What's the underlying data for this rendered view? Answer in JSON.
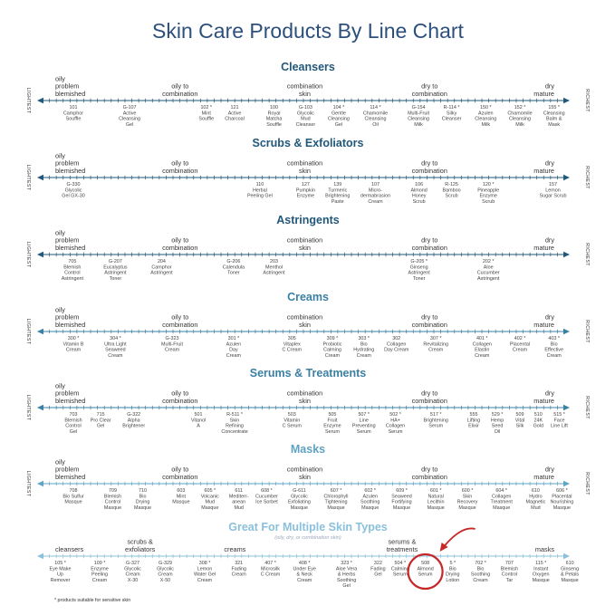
{
  "title": "Skin Care Products By Line Chart",
  "side_left": "LIGHTEST",
  "side_right": "RICHEST",
  "footnote": "* products suitable for sensitive skin",
  "sections": [
    {
      "title": "Cleansers",
      "color": "#22587a",
      "labels": [
        {
          "text": "oily\nproblem\nblemished",
          "pos": 0.0,
          "anchor": "start"
        },
        {
          "text": "oily to\ncombination",
          "pos": 0.25,
          "anchor": "middle"
        },
        {
          "text": "combination\nskin",
          "pos": 0.5,
          "anchor": "middle"
        },
        {
          "text": "dry to\ncombination",
          "pos": 0.75,
          "anchor": "middle"
        },
        {
          "text": "dry\nmature",
          "pos": 1.0,
          "anchor": "end"
        }
      ],
      "products": [
        {
          "text": "101\nCamphor\nSouffle",
          "pos": 0.05
        },
        {
          "text": "G-107\nActive\nCleansing\nGel",
          "pos": 0.157
        },
        {
          "text": "102 *\nMint\nSouffle",
          "pos": 0.303
        },
        {
          "text": "121\nActive\nCharcoal",
          "pos": 0.357
        },
        {
          "text": "100\nRoyal\nMatcha\nSouffle",
          "pos": 0.432
        },
        {
          "text": "G-103\nGlycolic\nMud\nCleanser",
          "pos": 0.492
        },
        {
          "text": "104 *\nGentle\nCleansing\nGel",
          "pos": 0.555
        },
        {
          "text": "114 *\nChamomile\nCleansing\nOil",
          "pos": 0.625
        },
        {
          "text": "G-154\nMulti-Fruit\nCleansing\nMilk",
          "pos": 0.707
        },
        {
          "text": "R-114 *\nSilky\nCleanser",
          "pos": 0.77
        },
        {
          "text": "150 *\nAzulen\nCleansing\nMilk",
          "pos": 0.835
        },
        {
          "text": "152 *\nChamomile\nCleansing\nMilk",
          "pos": 0.9
        },
        {
          "text": "155 *\nCleansing\nBalm &\nMask",
          "pos": 0.965
        }
      ]
    },
    {
      "title": "Scrubs & Exfoliators",
      "color": "#22587a",
      "labels": [
        {
          "text": "oily\nproblem\nblemished",
          "pos": 0.0,
          "anchor": "start"
        },
        {
          "text": "oily to\ncombination",
          "pos": 0.25,
          "anchor": "middle"
        },
        {
          "text": "combination\nskin",
          "pos": 0.5,
          "anchor": "middle"
        },
        {
          "text": "dry to\ncombination",
          "pos": 0.75,
          "anchor": "middle"
        },
        {
          "text": "dry\nmature",
          "pos": 1.0,
          "anchor": "end"
        }
      ],
      "products": [
        {
          "text": "G-330\nGlycolic\nGel GX-30",
          "pos": 0.05
        },
        {
          "text": "110\nHerbal\nPeeling Gel",
          "pos": 0.405
        },
        {
          "text": "127\nPumpkin\nEnzyme",
          "pos": 0.492
        },
        {
          "text": "139\nTurmeric\nBrightening\nPaste",
          "pos": 0.553
        },
        {
          "text": "107\nMicro-\ndermabrasion\nCream",
          "pos": 0.625
        },
        {
          "text": "106\nAlmond\nHoney\nScrub",
          "pos": 0.708
        },
        {
          "text": "R-125\nBamboo\nScrub",
          "pos": 0.77
        },
        {
          "text": "120 *\nPineapple\nEnzyme\nScrub",
          "pos": 0.84
        },
        {
          "text": "157\nLemon\nSugar Scrub",
          "pos": 0.963
        }
      ]
    },
    {
      "title": "Astringents",
      "color": "#22587a",
      "labels": [
        {
          "text": "oily\nproblem\nblemished",
          "pos": 0.0,
          "anchor": "start"
        },
        {
          "text": "oily to\ncombination",
          "pos": 0.25,
          "anchor": "middle"
        },
        {
          "text": "combination\nskin",
          "pos": 0.5,
          "anchor": "middle"
        },
        {
          "text": "dry to\ncombination",
          "pos": 0.75,
          "anchor": "middle"
        },
        {
          "text": "dry\nmature",
          "pos": 1.0,
          "anchor": "end"
        }
      ],
      "products": [
        {
          "text": "705\nBlemish\nControl\nAstringent",
          "pos": 0.048
        },
        {
          "text": "G-207\nEucalyptus\nAstringent\nToner",
          "pos": 0.13
        },
        {
          "text": "204\nCamphor\nAstringent",
          "pos": 0.218
        },
        {
          "text": "G-206\nCalendula\nToner",
          "pos": 0.355
        },
        {
          "text": "203\nMenthol\nAstringent",
          "pos": 0.432
        },
        {
          "text": "G-205 *\nGinseng\nAstringent\nToner",
          "pos": 0.708
        },
        {
          "text": "202 *\nAloe\nCucumber\nAstringent",
          "pos": 0.84
        }
      ]
    },
    {
      "title": "Creams",
      "color": "#3b7fa3",
      "labels": [
        {
          "text": "oily\nproblem\nblemished",
          "pos": 0.0,
          "anchor": "start"
        },
        {
          "text": "oily to\ncombination",
          "pos": 0.25,
          "anchor": "middle"
        },
        {
          "text": "combination\nskin",
          "pos": 0.5,
          "anchor": "middle"
        },
        {
          "text": "dry to\ncombination",
          "pos": 0.75,
          "anchor": "middle"
        },
        {
          "text": "dry\nmature",
          "pos": 1.0,
          "anchor": "end"
        }
      ],
      "products": [
        {
          "text": "300 *\nVitamin B\nCream",
          "pos": 0.05
        },
        {
          "text": "304 *\nUltra Light\nSeaweed\nCream",
          "pos": 0.13
        },
        {
          "text": "G-323\nMulti-Fruit\nCream",
          "pos": 0.238
        },
        {
          "text": "301 *\nAzulen\nDay\nCream",
          "pos": 0.355
        },
        {
          "text": "305\nVitaplex\nC Cream",
          "pos": 0.466
        },
        {
          "text": "309 *\nProbiotic\nCalming\nCream",
          "pos": 0.543
        },
        {
          "text": "303 *\nBio\nHydrating\nCream",
          "pos": 0.603
        },
        {
          "text": "302\nCollagen\nDay Cream",
          "pos": 0.665
        },
        {
          "text": "307 *\nRevitalizing\nCream",
          "pos": 0.74
        },
        {
          "text": "401 *\nCollagen\nElastin\nCream",
          "pos": 0.828
        },
        {
          "text": "402 *\nPlacental\nCream",
          "pos": 0.9
        },
        {
          "text": "403 *\nBio\nEffective\nCream",
          "pos": 0.965
        }
      ]
    },
    {
      "title": "Serums & Treatments",
      "color": "#3b7fa3",
      "labels": [
        {
          "text": "oily\nproblem\nblemished",
          "pos": 0.0,
          "anchor": "start"
        },
        {
          "text": "oily to\ncombination",
          "pos": 0.25,
          "anchor": "middle"
        },
        {
          "text": "combination\nskin",
          "pos": 0.5,
          "anchor": "middle"
        },
        {
          "text": "dry to\ncombination",
          "pos": 0.75,
          "anchor": "middle"
        },
        {
          "text": "dry\nmature",
          "pos": 1.0,
          "anchor": "end"
        }
      ],
      "products": [
        {
          "text": "703\nBlemish\nControl\nGel",
          "pos": 0.05
        },
        {
          "text": "715\nPro Clear\nGel",
          "pos": 0.102
        },
        {
          "text": "G-322\nAlpha\nBrightener",
          "pos": 0.165
        },
        {
          "text": "501\nVitanol\nA",
          "pos": 0.288
        },
        {
          "text": "R-511 *\nSkin\nRefining\nConcentrate",
          "pos": 0.357
        },
        {
          "text": "503\nVitamin\nC Serum",
          "pos": 0.466
        },
        {
          "text": "505\nFruit\nEnzyme\nSerum",
          "pos": 0.543
        },
        {
          "text": "507 *\nLine\nPreventing\nSerum",
          "pos": 0.603
        },
        {
          "text": "502 *\nHA+\nCollagen\nSerum",
          "pos": 0.663
        },
        {
          "text": "517 *\nBrightening\nSerum",
          "pos": 0.74
        },
        {
          "text": "555\nLifting\nElixir",
          "pos": 0.812
        },
        {
          "text": "529 *\nHemp\nSeed\nOil",
          "pos": 0.857
        },
        {
          "text": "509\nVital\nSilk",
          "pos": 0.9
        },
        {
          "text": "510\n24K\nGold",
          "pos": 0.935
        },
        {
          "text": "515 *\nFace\nLine Lift",
          "pos": 0.975
        }
      ]
    },
    {
      "title": "Masks",
      "color": "#5fa3c4",
      "labels": [
        {
          "text": "oily\nproblem\nblemished",
          "pos": 0.0,
          "anchor": "start"
        },
        {
          "text": "oily to\ncombination",
          "pos": 0.25,
          "anchor": "middle"
        },
        {
          "text": "combination\nskin",
          "pos": 0.5,
          "anchor": "middle"
        },
        {
          "text": "dry to\ncombination",
          "pos": 0.75,
          "anchor": "middle"
        },
        {
          "text": "dry\nmature",
          "pos": 1.0,
          "anchor": "end"
        }
      ],
      "products": [
        {
          "text": "708\nBio Sulfur\nMasque",
          "pos": 0.05
        },
        {
          "text": "709\nBlemish\nControl\nMasque",
          "pos": 0.125
        },
        {
          "text": "710\nBio\nDrying\nMasque",
          "pos": 0.182
        },
        {
          "text": "603\nMint\nMasque",
          "pos": 0.255
        },
        {
          "text": "605 *\nVolcanic\nMud\nMasque",
          "pos": 0.31
        },
        {
          "text": "611\nMediterr-\nanean\nMud",
          "pos": 0.365
        },
        {
          "text": "608 *\nCucumber\nIce Sorbet",
          "pos": 0.418
        },
        {
          "text": "G-611\nGlycolic\nExfoliating\nMasque",
          "pos": 0.48
        },
        {
          "text": "607 *\nChlorophyll\nTightening\nMasque",
          "pos": 0.55
        },
        {
          "text": "602 *\nAzulen\nSoothing\nMasque",
          "pos": 0.615
        },
        {
          "text": "609 *\nSeaweed\nFortifying\nMasque",
          "pos": 0.675
        },
        {
          "text": "601 *\nNatural\nLecithin\nMasque",
          "pos": 0.74
        },
        {
          "text": "600 *\nSkin\nRecovery\nMasque",
          "pos": 0.8
        },
        {
          "text": "604 *\nCollagen\nTreatment\nMasque",
          "pos": 0.865
        },
        {
          "text": "610\nHydro\nMagnetic\nMud",
          "pos": 0.93
        },
        {
          "text": "606 *\nPlacental\nNourishing\nMasque",
          "pos": 0.98
        }
      ]
    },
    {
      "title": "Great For Multiple Skin Types",
      "subtitle": "(oily, dry, or combination skin)",
      "color": "#8ac0db",
      "labels": [
        {
          "text": "cleansers",
          "pos": 0.0,
          "anchor": "start"
        },
        {
          "text": "scrubs &\nexfoliators",
          "pos": 0.17,
          "anchor": "middle"
        },
        {
          "text": "creams",
          "pos": 0.36,
          "anchor": "middle"
        },
        {
          "text": "serums &\ntreatments",
          "pos": 0.695,
          "anchor": "middle"
        },
        {
          "text": "masks",
          "pos": 1.0,
          "anchor": "end"
        }
      ],
      "products": [
        {
          "text": "105 *\nEye Make\nUp\nRemover",
          "pos": 0.025
        },
        {
          "text": "109 *\nEnzyme\nPeeling\nCream",
          "pos": 0.1
        },
        {
          "text": "G-327\nGlycolic\nCream\nX-30",
          "pos": 0.163
        },
        {
          "text": "G-329\nGlycolic\nCream\nX-50",
          "pos": 0.225
        },
        {
          "text": "308 *\nLemon\nWater Gel\nCream",
          "pos": 0.3
        },
        {
          "text": "321\nFading\nCream",
          "pos": 0.365
        },
        {
          "text": "407 *\nMicrosilk\nC Cream",
          "pos": 0.425
        },
        {
          "text": "408 *\nUnder Eye\n& Neck\nCream",
          "pos": 0.49
        },
        {
          "text": "323 *\nAloe Vera\n& Herbs\nSoothing\nGel",
          "pos": 0.57
        },
        {
          "text": "322\nFading\nGel",
          "pos": 0.63
        },
        {
          "text": "504 *\nCalming\nSerum",
          "pos": 0.672
        },
        {
          "text": "508\nAlmond\nSerum",
          "pos": 0.72
        },
        {
          "text": "5 *\nBio\nDrying\nLotion",
          "pos": 0.772
        },
        {
          "text": "702 *\nBio\nSoothing\nCream",
          "pos": 0.825
        },
        {
          "text": "707\nBlemish\nControl\nTar",
          "pos": 0.88
        },
        {
          "text": "115 *\nInstant\nOxygen\nMasque",
          "pos": 0.94
        },
        {
          "text": "610\nGinseng\n& Petals\nMasque",
          "pos": 0.995
        }
      ],
      "highlight_product": "508 Almond Serum",
      "highlight_color": "#c62828"
    }
  ]
}
